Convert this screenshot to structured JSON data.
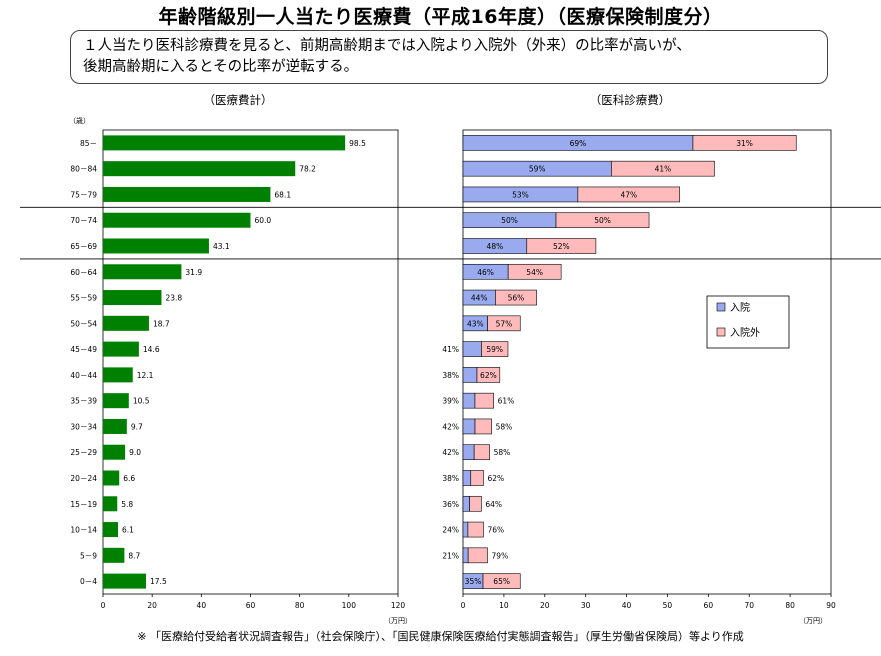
{
  "title": "年齢階級別一人当たり医療費（平成16年度）（医療保険制度分）",
  "summary": {
    "line1": "１人当たり医科診療費を見ると、前期高齢期までは入院より入院外（外来）の比率が高いが、",
    "line2": "後期高齢期に入るとその比率が逆転する。"
  },
  "source_note": "※ 「医療給付受給者状況調査報告」（社会保険庁）、「国民健康保険医療給付実態調査報告」（厚生労働省保険局）等より作成",
  "colors": {
    "green": "#008000",
    "inpatient": "#99AAEE",
    "outpatient": "#FFBBBB"
  },
  "chart_data": [
    {
      "type": "bar",
      "orientation": "horizontal",
      "title": "（医療費計）",
      "ylabel": "（歳）",
      "xlabel": "（万円）",
      "xlim": [
        0,
        120
      ],
      "xticks": [
        "0",
        "20",
        "40",
        "60",
        "80",
        "100",
        "120"
      ],
      "categories": [
        "85－",
        "80－84",
        "75－79",
        "70－74",
        "65－69",
        "60－64",
        "55－59",
        "50－54",
        "45－49",
        "40－44",
        "35－39",
        "30－34",
        "25－29",
        "20－24",
        "15－19",
        "10－14",
        "5－9",
        "0－4"
      ],
      "values": [
        98.5,
        78.2,
        68.1,
        60.0,
        43.1,
        31.9,
        23.8,
        18.7,
        14.6,
        12.1,
        10.5,
        9.7,
        9.0,
        6.6,
        5.8,
        6.1,
        8.7,
        17.5
      ],
      "value_labels": [
        "98.5",
        "78.2",
        "68.1",
        "60.0",
        "43.1",
        "31.9",
        "23.8",
        "18.7",
        "14.6",
        "12.1",
        "10.5",
        "9.7",
        "9.0",
        "6.6",
        "5.8",
        "6.1",
        "8.7",
        "17.5"
      ]
    },
    {
      "type": "bar",
      "orientation": "horizontal",
      "stacked": true,
      "title": "（医科診療費）",
      "xlabel": "（万円）",
      "xlim": [
        0,
        90
      ],
      "xticks": [
        "0",
        "10",
        "20",
        "30",
        "40",
        "50",
        "60",
        "70",
        "80",
        "90"
      ],
      "legend_position": "right",
      "categories": [
        "85－",
        "80－84",
        "75－79",
        "70－74",
        "65－69",
        "60－64",
        "55－59",
        "50－54",
        "45－49",
        "40－44",
        "35－39",
        "30－34",
        "25－29",
        "20－24",
        "15－19",
        "10－14",
        "5－9",
        "0－4"
      ],
      "totals": [
        81.5,
        61.5,
        53.0,
        45.5,
        32.5,
        24.0,
        18.0,
        14.0,
        11.0,
        9.0,
        7.5,
        7.0,
        6.5,
        5.0,
        4.5,
        5.0,
        6.0,
        14.0
      ],
      "series": [
        {
          "name": "入院",
          "percent": [
            69,
            59,
            53,
            50,
            48,
            46,
            44,
            43,
            41,
            38,
            39,
            42,
            42,
            38,
            36,
            24,
            21,
            35
          ],
          "labels": [
            "69%",
            "59%",
            "53%",
            "50%",
            "48%",
            "46%",
            "44%",
            "43%",
            "41%",
            "38%",
            "39%",
            "42%",
            "42%",
            "38%",
            "36%",
            "24%",
            "21%",
            "35%"
          ]
        },
        {
          "name": "入院外",
          "percent": [
            31,
            41,
            47,
            50,
            52,
            54,
            56,
            57,
            59,
            62,
            61,
            58,
            58,
            62,
            64,
            76,
            79,
            65
          ],
          "labels": [
            "31%",
            "41%",
            "47%",
            "50%",
            "52%",
            "54%",
            "56%",
            "57%",
            "59%",
            "62%",
            "61%",
            "58%",
            "58%",
            "62%",
            "64%",
            "76%",
            "79%",
            "65%"
          ]
        }
      ]
    }
  ]
}
